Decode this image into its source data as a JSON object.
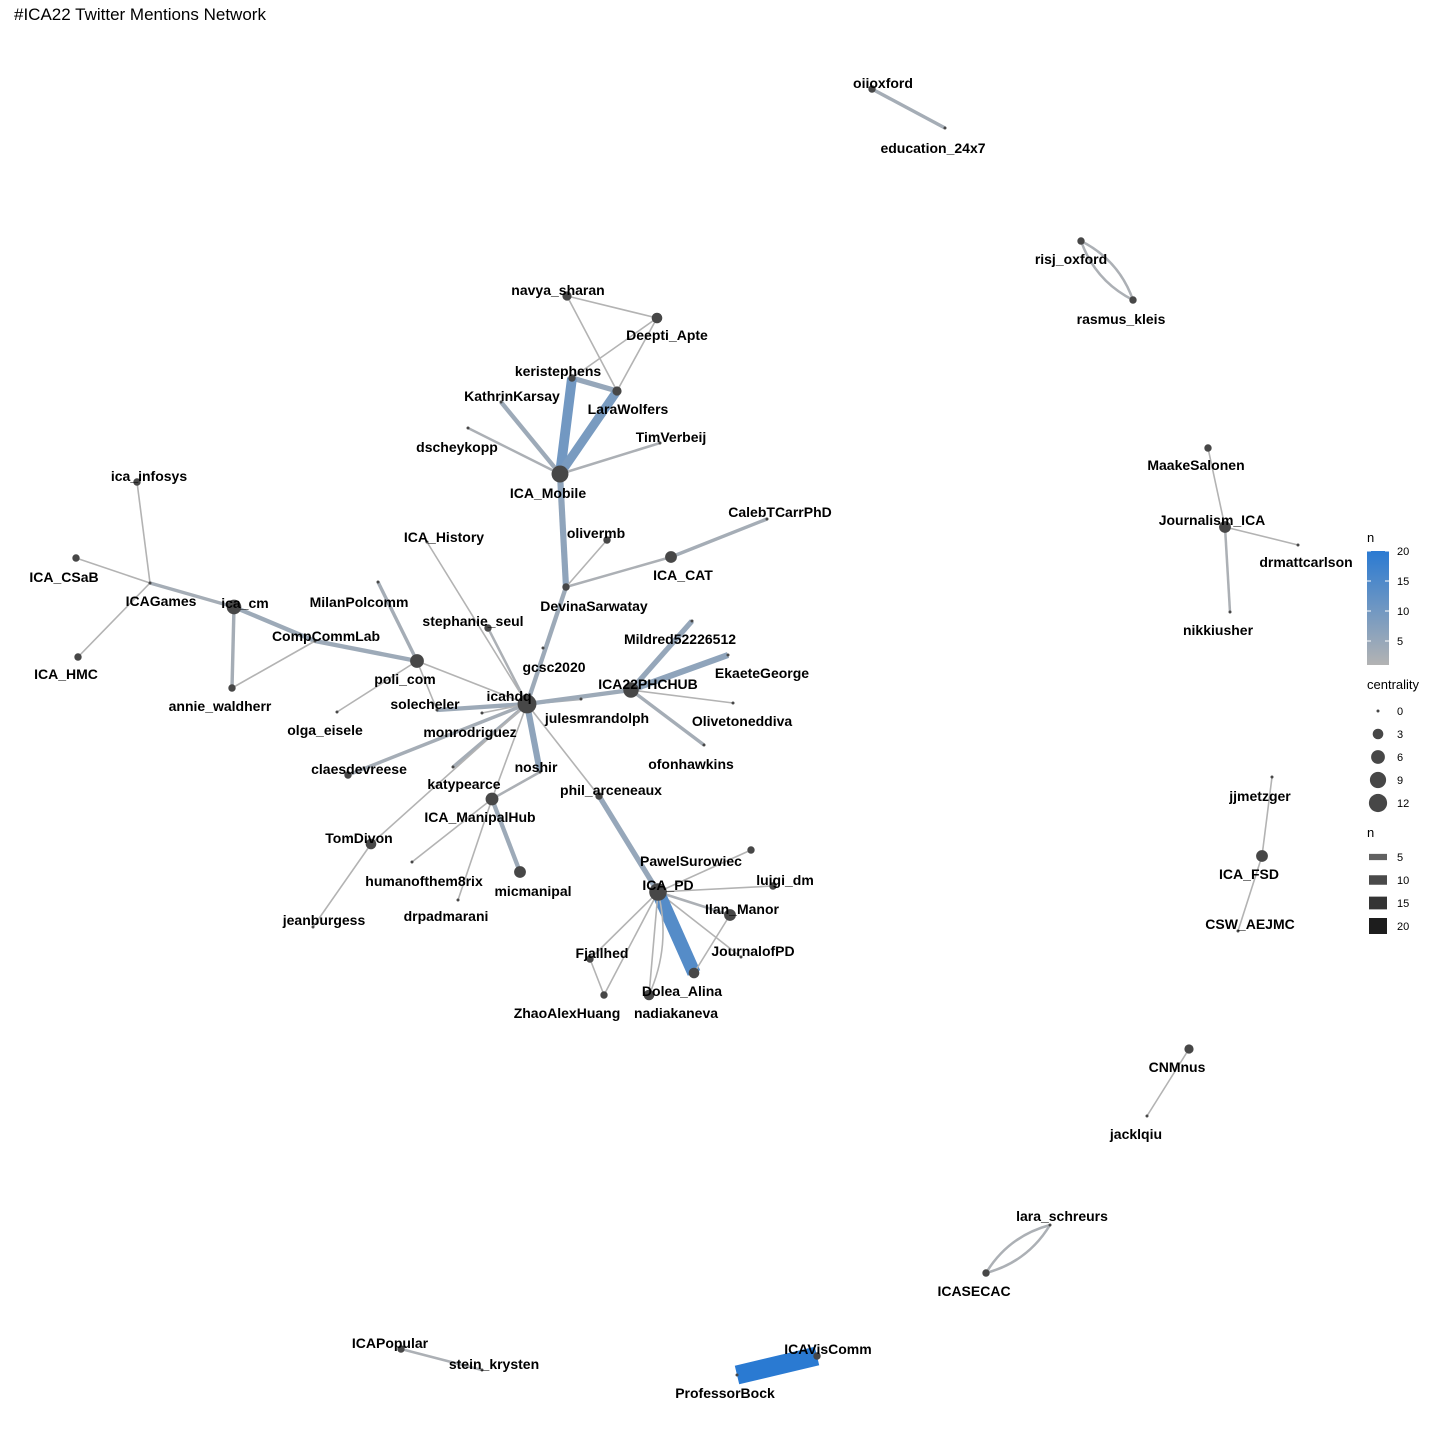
{
  "title": "#ICA22 Twitter Mentions Network",
  "colors": {
    "edge_low": "#b3b3b3",
    "edge_high": "#2a7ad2",
    "node": "#474747",
    "background": "#ffffff"
  },
  "nodes": [
    {
      "id": "oiioxford",
      "label": "oiioxford",
      "centrality": 1
    },
    {
      "id": "education_24x7",
      "label": "education_24x7",
      "centrality": 0
    },
    {
      "id": "risj_oxford",
      "label": "risj_oxford",
      "centrality": 1
    },
    {
      "id": "rasmus_kleis",
      "label": "rasmus_kleis",
      "centrality": 1
    },
    {
      "id": "navya_sharan",
      "label": "navya_sharan",
      "centrality": 2
    },
    {
      "id": "Deepti_Apte",
      "label": "Deepti_Apte",
      "centrality": 3
    },
    {
      "id": "keristephens",
      "label": "keristephens",
      "centrality": 1
    },
    {
      "id": "LaraWolfers",
      "label": "LaraWolfers",
      "centrality": 2
    },
    {
      "id": "KathrinKarsay",
      "label": "KathrinKarsay",
      "centrality": 0
    },
    {
      "id": "dscheykopp",
      "label": "dscheykopp",
      "centrality": 0
    },
    {
      "id": "TimVerbeij",
      "label": "TimVerbeij",
      "centrality": 0
    },
    {
      "id": "ICA_Mobile",
      "label": "ICA_Mobile",
      "centrality": 10
    },
    {
      "id": "ica_infosys",
      "label": "ica_infosys",
      "centrality": 1
    },
    {
      "id": "ICA_CSaB",
      "label": "ICA_CSaB",
      "centrality": 1
    },
    {
      "id": "ICAGames",
      "label": "ICAGames",
      "centrality": 0
    },
    {
      "id": "ICA_HMC",
      "label": "ICA_HMC",
      "centrality": 1
    },
    {
      "id": "ica_cm",
      "label": "ica_cm",
      "centrality": 7
    },
    {
      "id": "CompCommLab",
      "label": "CompCommLab",
      "centrality": 0
    },
    {
      "id": "annie_waldherr",
      "label": "annie_waldherr",
      "centrality": 1
    },
    {
      "id": "ICA_History",
      "label": "ICA_History",
      "centrality": 0
    },
    {
      "id": "olivermb",
      "label": "olivermb",
      "centrality": 1
    },
    {
      "id": "CalebTCarrPhD",
      "label": "CalebTCarrPhD",
      "centrality": 0
    },
    {
      "id": "ICA_CAT",
      "label": "ICA_CAT",
      "centrality": 4
    },
    {
      "id": "DevinaSarwatay",
      "label": "DevinaSarwatay",
      "centrality": 1
    },
    {
      "id": "MilanPolcomm",
      "label": "MilanPolcomm",
      "centrality": 0
    },
    {
      "id": "stephanie_seul",
      "label": "stephanie_seul",
      "centrality": 1
    },
    {
      "id": "gcsc2020",
      "label": "gcsc2020",
      "centrality": 0
    },
    {
      "id": "poli_com",
      "label": "poli_com",
      "centrality": 6
    },
    {
      "id": "olga_eisele",
      "label": "olga_eisele",
      "centrality": 0
    },
    {
      "id": "solecheler",
      "label": "solecheler",
      "centrality": 0
    },
    {
      "id": "icahdq",
      "label": "icahdq",
      "centrality": 13
    },
    {
      "id": "monrodriguez",
      "label": "monrodriguez",
      "centrality": 0
    },
    {
      "id": "julesmrandolph",
      "label": "julesmrandolph",
      "centrality": 0
    },
    {
      "id": "Mildred52226512",
      "label": "Mildred52226512",
      "centrality": 0
    },
    {
      "id": "EkaeteGeorge",
      "label": "EkaeteGeorge",
      "centrality": 0
    },
    {
      "id": "ICA22PHCHUB",
      "label": "ICA22PHCHUB",
      "centrality": 8
    },
    {
      "id": "Olivetoneddiva",
      "label": "Olivetoneddiva",
      "centrality": 0
    },
    {
      "id": "ofonhawkins",
      "label": "ofonhawkins",
      "centrality": 0
    },
    {
      "id": "claesdevreese",
      "label": "claesdevreese",
      "centrality": 1
    },
    {
      "id": "katypearce",
      "label": "katypearce",
      "centrality": 0
    },
    {
      "id": "noshir",
      "label": "noshir",
      "centrality": 0
    },
    {
      "id": "phil_arceneaux",
      "label": "phil_arceneaux",
      "centrality": 1
    },
    {
      "id": "ICA_ManipalHub",
      "label": "ICA_ManipalHub",
      "centrality": 5
    },
    {
      "id": "TomDivon",
      "label": "TomDivon",
      "centrality": 3
    },
    {
      "id": "humanofthem8rix",
      "label": "humanofthem8rix",
      "centrality": 0
    },
    {
      "id": "drpadmarani",
      "label": "drpadmarani",
      "centrality": 0
    },
    {
      "id": "micmanipal",
      "label": "micmanipal",
      "centrality": 4
    },
    {
      "id": "jeanburgess",
      "label": "jeanburgess",
      "centrality": 0
    },
    {
      "id": "PawelSurowiec",
      "label": "PawelSurowiec",
      "centrality": 1
    },
    {
      "id": "ICA_PD",
      "label": "ICA_PD",
      "centrality": 11
    },
    {
      "id": "luigi_dm",
      "label": "luigi_dm",
      "centrality": 1
    },
    {
      "id": "Ilan_Manor",
      "label": "Ilan_Manor",
      "centrality": 4
    },
    {
      "id": "JournalofPD",
      "label": "JournalofPD",
      "centrality": 0
    },
    {
      "id": "Fjallhed",
      "label": "Fjallhed",
      "centrality": 1
    },
    {
      "id": "Dolea_Alina",
      "label": "Dolea_Alina",
      "centrality": 3
    },
    {
      "id": "ZhaoAlexHuang",
      "label": "ZhaoAlexHuang",
      "centrality": 1
    },
    {
      "id": "nadiakaneva",
      "label": "nadiakaneva",
      "centrality": 3
    },
    {
      "id": "MaakeSalonen",
      "label": "MaakeSalonen",
      "centrality": 1
    },
    {
      "id": "Journalism_ICA",
      "label": "Journalism_ICA",
      "centrality": 4
    },
    {
      "id": "drmattcarlson",
      "label": "drmattcarlson",
      "centrality": 0
    },
    {
      "id": "nikkiusher",
      "label": "nikkiusher",
      "centrality": 0
    },
    {
      "id": "jjmetzger",
      "label": "jjmetzger",
      "centrality": 0
    },
    {
      "id": "ICA_FSD",
      "label": "ICA_FSD",
      "centrality": 4
    },
    {
      "id": "CSW_AEJMC",
      "label": "CSW_AEJMC",
      "centrality": 0
    },
    {
      "id": "CNMnus",
      "label": "CNMnus",
      "centrality": 2
    },
    {
      "id": "jacklqiu",
      "label": "jacklqiu",
      "centrality": 0
    },
    {
      "id": "lara_schreurs",
      "label": "lara_schreurs",
      "centrality": 0
    },
    {
      "id": "ICASECAC",
      "label": "ICASECAC",
      "centrality": 1
    },
    {
      "id": "ICAPopular",
      "label": "ICAPopular",
      "centrality": 1
    },
    {
      "id": "stein_krysten",
      "label": "stein_krysten",
      "centrality": 0
    },
    {
      "id": "ICAVisComm",
      "label": "ICAVisComm",
      "centrality": 1
    },
    {
      "id": "ProfessorBock",
      "label": "ProfessorBock",
      "centrality": 0
    }
  ],
  "edges": [
    {
      "source": "oiioxford",
      "target": "education_24x7",
      "n": 3
    },
    {
      "source": "risj_oxford",
      "target": "rasmus_kleis",
      "n": 2,
      "curve": 1
    },
    {
      "source": "risj_oxford",
      "target": "rasmus_kleis",
      "n": 2,
      "curve": -1
    },
    {
      "source": "navya_sharan",
      "target": "Deepti_Apte",
      "n": 1
    },
    {
      "source": "navya_sharan",
      "target": "LaraWolfers",
      "n": 1
    },
    {
      "source": "Deepti_Apte",
      "target": "keristephens",
      "n": 1
    },
    {
      "source": "Deepti_Apte",
      "target": "LaraWolfers",
      "n": 1
    },
    {
      "source": "keristephens",
      "target": "LaraWolfers",
      "n": 5
    },
    {
      "source": "keristephens",
      "target": "ICA_Mobile",
      "n": 10
    },
    {
      "source": "LaraWolfers",
      "target": "ICA_Mobile",
      "n": 9
    },
    {
      "source": "KathrinKarsay",
      "target": "ICA_Mobile",
      "n": 4
    },
    {
      "source": "dscheykopp",
      "target": "ICA_Mobile",
      "n": 2
    },
    {
      "source": "TimVerbeij",
      "target": "ICA_Mobile",
      "n": 2
    },
    {
      "source": "ICA_Mobile",
      "target": "DevinaSarwatay",
      "n": 6
    },
    {
      "source": "ica_infosys",
      "target": "ICAGames",
      "n": 1
    },
    {
      "source": "ICA_CSaB",
      "target": "ICAGames",
      "n": 1
    },
    {
      "source": "ICA_HMC",
      "target": "ICAGames",
      "n": 1
    },
    {
      "source": "ICAGames",
      "target": "ica_cm",
      "n": 3
    },
    {
      "source": "ica_cm",
      "target": "CompCommLab",
      "n": 4
    },
    {
      "source": "ica_cm",
      "target": "annie_waldherr",
      "n": 3
    },
    {
      "source": "CompCommLab",
      "target": "annie_waldherr",
      "n": 1
    },
    {
      "source": "CompCommLab",
      "target": "poli_com",
      "n": 4
    },
    {
      "source": "ICA_History",
      "target": "icahdq",
      "n": 1
    },
    {
      "source": "olivermb",
      "target": "DevinaSarwatay",
      "n": 1
    },
    {
      "source": "CalebTCarrPhD",
      "target": "ICA_CAT",
      "n": 3
    },
    {
      "source": "ICA_CAT",
      "target": "DevinaSarwatay",
      "n": 2
    },
    {
      "source": "DevinaSarwatay",
      "target": "icahdq",
      "n": 4
    },
    {
      "source": "MilanPolcomm",
      "target": "poli_com",
      "n": 3
    },
    {
      "source": "stephanie_seul",
      "target": "icahdq",
      "n": 2
    },
    {
      "source": "poli_com",
      "target": "icahdq",
      "n": 1
    },
    {
      "source": "poli_com",
      "target": "olga_eisele",
      "n": 1
    },
    {
      "source": "poli_com",
      "target": "solecheler",
      "n": 1
    },
    {
      "source": "icahdq",
      "target": "solecheler",
      "n": 4
    },
    {
      "source": "icahdq",
      "target": "monrodriguez",
      "n": 1
    },
    {
      "source": "icahdq",
      "target": "julesmrandolph",
      "n": 2
    },
    {
      "source": "icahdq",
      "target": "ICA22PHCHUB",
      "n": 4
    },
    {
      "source": "icahdq",
      "target": "claesdevreese",
      "n": 3
    },
    {
      "source": "icahdq",
      "target": "katypearce",
      "n": 3
    },
    {
      "source": "icahdq",
      "target": "noshir",
      "n": 6
    },
    {
      "source": "icahdq",
      "target": "phil_arceneaux",
      "n": 1
    },
    {
      "source": "icahdq",
      "target": "ICA_ManipalHub",
      "n": 1
    },
    {
      "source": "icahdq",
      "target": "TomDivon",
      "n": 1
    },
    {
      "source": "ICA22PHCHUB",
      "target": "Mildred52226512",
      "n": 5
    },
    {
      "source": "ICA22PHCHUB",
      "target": "EkaeteGeorge",
      "n": 6
    },
    {
      "source": "ICA22PHCHUB",
      "target": "Olivetoneddiva",
      "n": 1
    },
    {
      "source": "ICA22PHCHUB",
      "target": "ofonhawkins",
      "n": 3
    },
    {
      "source": "noshir",
      "target": "ICA_ManipalHub",
      "n": 2
    },
    {
      "source": "ICA_ManipalHub",
      "target": "humanofthem8rix",
      "n": 1
    },
    {
      "source": "ICA_ManipalHub",
      "target": "drpadmarani",
      "n": 1
    },
    {
      "source": "ICA_ManipalHub",
      "target": "micmanipal",
      "n": 4
    },
    {
      "source": "TomDivon",
      "target": "jeanburgess",
      "n": 1
    },
    {
      "source": "phil_arceneaux",
      "target": "ICA_PD",
      "n": 5
    },
    {
      "source": "PawelSurowiec",
      "target": "ICA_PD",
      "n": 1
    },
    {
      "source": "ICA_PD",
      "target": "luigi_dm",
      "n": 1
    },
    {
      "source": "ICA_PD",
      "target": "Ilan_Manor",
      "n": 2
    },
    {
      "source": "ICA_PD",
      "target": "JournalofPD",
      "n": 1
    },
    {
      "source": "ICA_PD",
      "target": "Fjallhed",
      "n": 1
    },
    {
      "source": "ICA_PD",
      "target": "Dolea_Alina",
      "n": 14
    },
    {
      "source": "ICA_PD",
      "target": "ZhaoAlexHuang",
      "n": 1
    },
    {
      "source": "ICA_PD",
      "target": "nadiakaneva",
      "n": 1
    },
    {
      "source": "Ilan_Manor",
      "target": "Dolea_Alina",
      "n": 1
    },
    {
      "source": "Fjallhed",
      "target": "ZhaoAlexHuang",
      "n": 1
    },
    {
      "source": "nadiakaneva",
      "target": "ICA_PD",
      "n": 1,
      "curve": 1
    },
    {
      "source": "MaakeSalonen",
      "target": "Journalism_ICA",
      "n": 1
    },
    {
      "source": "Journalism_ICA",
      "target": "drmattcarlson",
      "n": 1
    },
    {
      "source": "Journalism_ICA",
      "target": "nikkiusher",
      "n": 2
    },
    {
      "source": "jjmetzger",
      "target": "ICA_FSD",
      "n": 1
    },
    {
      "source": "ICA_FSD",
      "target": "CSW_AEJMC",
      "n": 1
    },
    {
      "source": "CNMnus",
      "target": "jacklqiu",
      "n": 1
    },
    {
      "source": "lara_schreurs",
      "target": "ICASECAC",
      "n": 2,
      "curve": 1
    },
    {
      "source": "lara_schreurs",
      "target": "ICASECAC",
      "n": 2,
      "curve": -1
    },
    {
      "source": "ICAPopular",
      "target": "stein_krysten",
      "n": 2
    },
    {
      "source": "ICAVisComm",
      "target": "ProfessorBock",
      "n": 20
    }
  ],
  "legend": {
    "color_title": "n",
    "color_ticks": [
      20,
      15,
      10,
      5
    ],
    "color_range": [
      1,
      20
    ],
    "size_title": "centrality",
    "size_ticks": [
      0,
      3,
      6,
      9,
      12
    ],
    "width_title": "n",
    "width_ticks": [
      5,
      10,
      15,
      20
    ]
  }
}
